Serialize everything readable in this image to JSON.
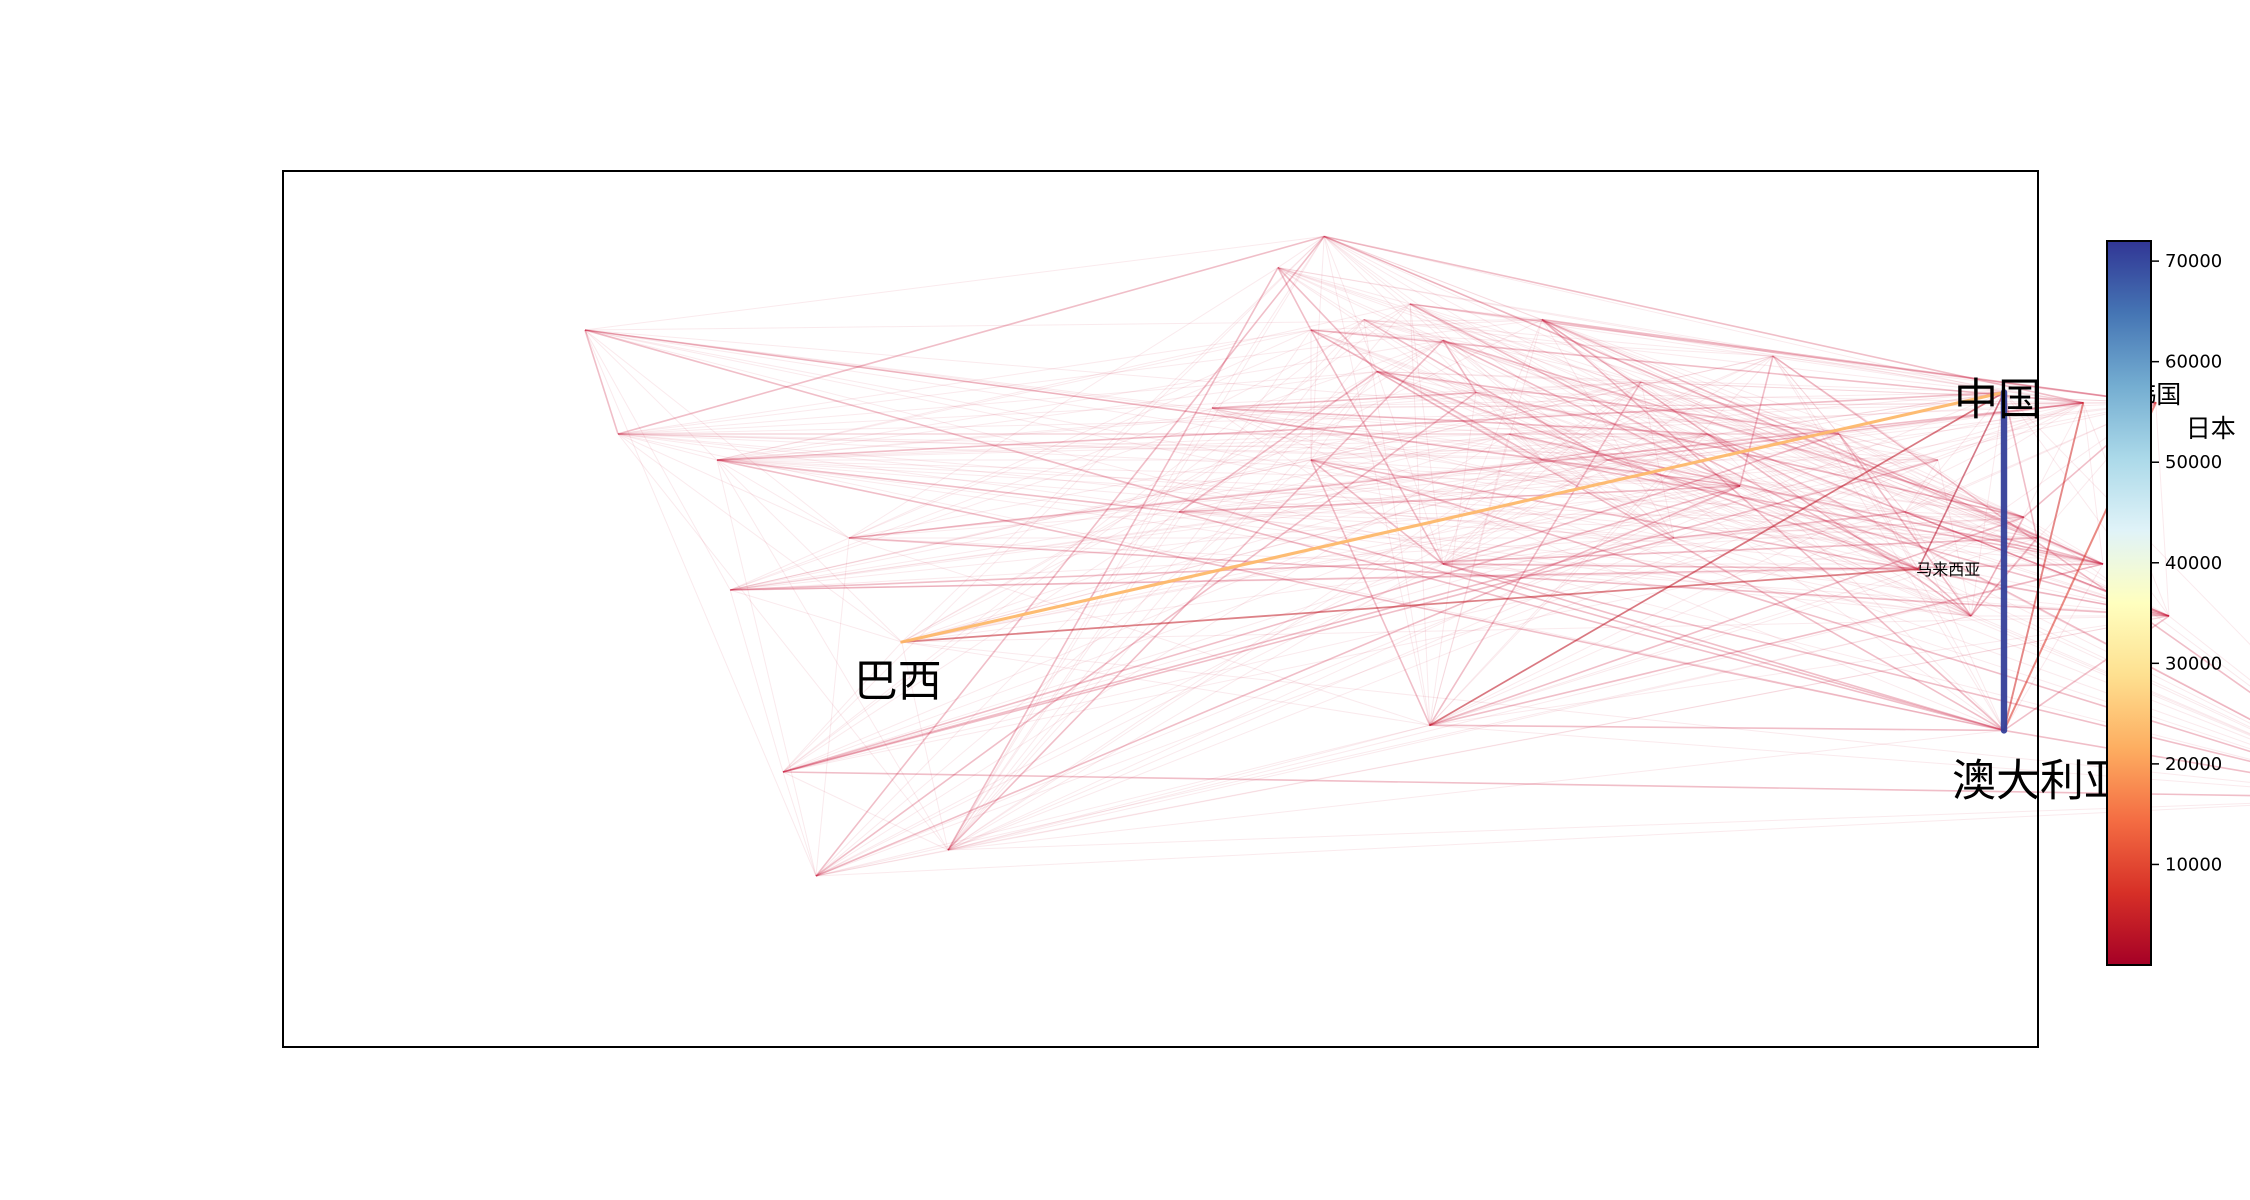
{
  "chart_data": {
    "type": "network-map",
    "title": "",
    "xlabel": "",
    "ylabel": "",
    "grid": false,
    "colormap": [
      "#a50026",
      "#d73027",
      "#f46d43",
      "#fdae61",
      "#fee090",
      "#ffffbf",
      "#e0f3f8",
      "#abd9e9",
      "#74add1",
      "#4575b4",
      "#313695"
    ],
    "colorbar": {
      "min": 0,
      "max": 72000,
      "ticks": [
        10000,
        20000,
        30000,
        40000,
        50000,
        60000,
        70000
      ],
      "tick_labels": [
        "10000",
        "20000",
        "30000",
        "40000",
        "50000",
        "60000",
        "70000"
      ]
    },
    "nodes": [
      {
        "id": "china",
        "label": "中国",
        "label_size": "large",
        "lon": 115,
        "lat": 38
      },
      {
        "id": "korea",
        "label": "韩国",
        "label_size": "medium",
        "lon": 127,
        "lat": 36
      },
      {
        "id": "japan",
        "label": "日本",
        "label_size": "medium",
        "lon": 138,
        "lat": 36
      },
      {
        "id": "malaysia",
        "label": "马来西亚",
        "label_size": "small",
        "lon": 102,
        "lat": 4
      },
      {
        "id": "australia",
        "label": "澳大利亚",
        "label_size": "large",
        "lon": 115,
        "lat": -27
      },
      {
        "id": "brazil",
        "label": "巴西",
        "label_size": "large",
        "lon": -52,
        "lat": -10
      }
    ],
    "major_flows": [
      {
        "source": "australia",
        "target": "china",
        "value": 71000
      },
      {
        "source": "brazil",
        "target": "china",
        "value": 23000
      },
      {
        "source": "australia",
        "target": "japan",
        "value": 8000
      },
      {
        "source": "australia",
        "target": "korea",
        "value": 6000
      },
      {
        "source": "brazil",
        "target": "malaysia",
        "value": 4000
      },
      {
        "source": "south-africa",
        "target": "china",
        "value": 3500
      },
      {
        "source": "malaysia",
        "target": "china",
        "value": 2000
      }
    ],
    "minor_node_locations": [
      [
        -100,
        50
      ],
      [
        -95,
        30
      ],
      [
        -70,
        -35
      ],
      [
        -65,
        -55
      ],
      [
        -60,
        10
      ],
      [
        -45,
        -50
      ],
      [
        5,
        62
      ],
      [
        12,
        68
      ],
      [
        10,
        50
      ],
      [
        20,
        42
      ],
      [
        25,
        55
      ],
      [
        30,
        48
      ],
      [
        35,
        38
      ],
      [
        40,
        30
      ],
      [
        45,
        25
      ],
      [
        55,
        25
      ],
      [
        60,
        40
      ],
      [
        70,
        30
      ],
      [
        75,
        20
      ],
      [
        80,
        45
      ],
      [
        100,
        15
      ],
      [
        105,
        25
      ],
      [
        120,
        10
      ],
      [
        118,
        14
      ],
      [
        140,
        -5
      ],
      [
        28,
        -26
      ],
      [
        -5,
        35
      ],
      [
        -10,
        15
      ],
      [
        10,
        25
      ],
      [
        30,
        5
      ],
      [
        18,
        52
      ],
      [
        45,
        52
      ],
      [
        -78,
        0
      ],
      [
        -80,
        25
      ],
      [
        65,
        10
      ],
      [
        90,
        30
      ],
      [
        110,
        -5
      ],
      [
        130,
        5
      ],
      [
        175,
        -40
      ]
    ]
  }
}
